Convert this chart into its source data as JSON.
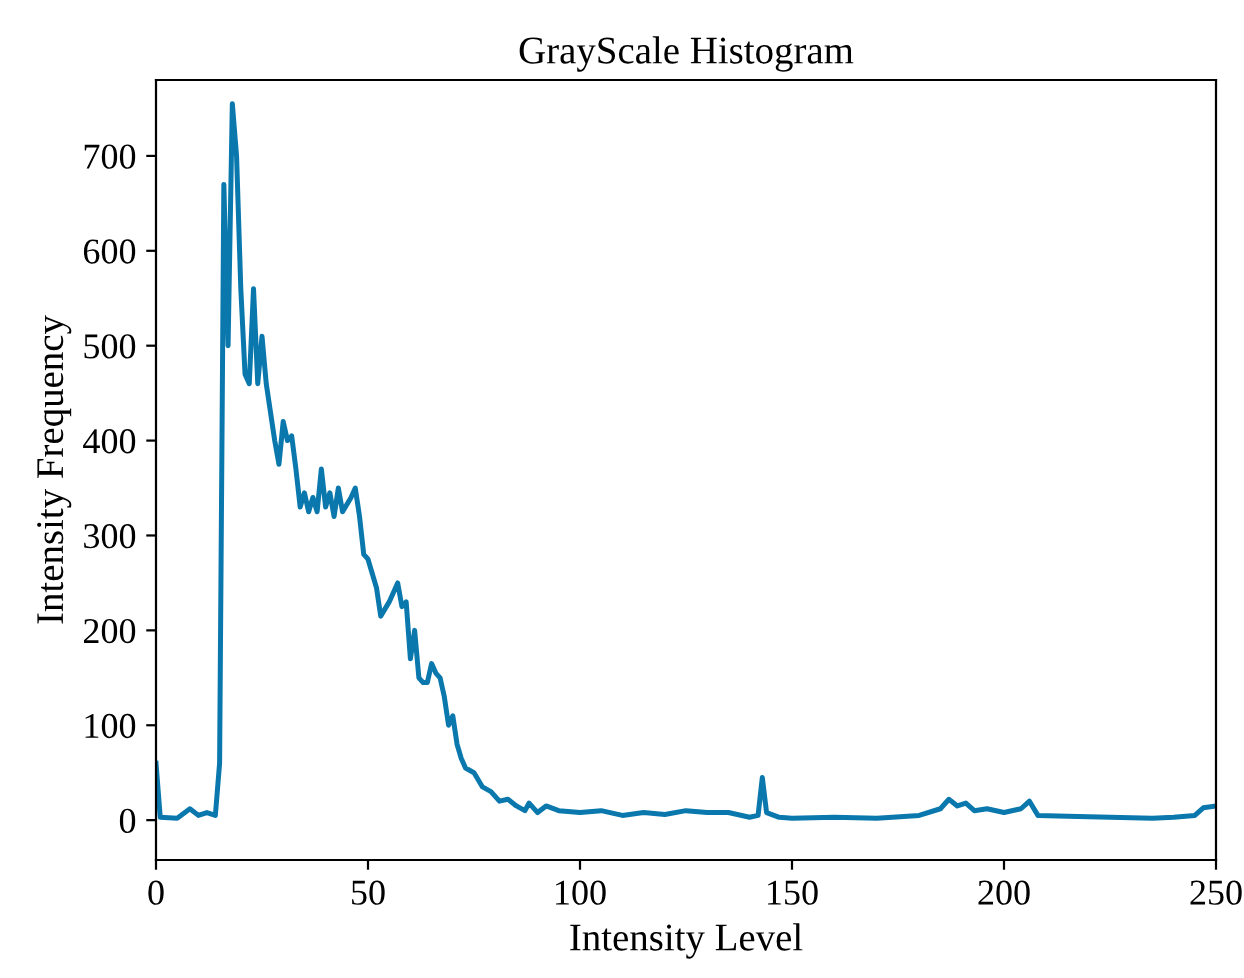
{
  "chart_data": {
    "type": "line",
    "title": "GrayScale Histogram",
    "xlabel": "Intensity Level",
    "ylabel": "Intensity Frequency",
    "xlim": [
      0,
      250
    ],
    "ylim": [
      -42,
      780
    ],
    "xticks": [
      0,
      50,
      100,
      150,
      200,
      250
    ],
    "yticks": [
      0,
      100,
      200,
      300,
      400,
      500,
      600,
      700
    ],
    "grid": false,
    "legend": false,
    "series": [
      {
        "color": "#0a78ad",
        "x": [
          0,
          1,
          5,
          8,
          10,
          12,
          14,
          15,
          16,
          17,
          18,
          19,
          20,
          21,
          22,
          23,
          24,
          25,
          26,
          28,
          29,
          30,
          31,
          32,
          33,
          34,
          35,
          36,
          37,
          38,
          39,
          40,
          41,
          42,
          43,
          44,
          46,
          47,
          48,
          49,
          50,
          52,
          53,
          55,
          57,
          58,
          59,
          60,
          61,
          62,
          63,
          64,
          65,
          66,
          67,
          68,
          69,
          70,
          71,
          72,
          73,
          75,
          77,
          79,
          81,
          83,
          85,
          87,
          88,
          90,
          92,
          95,
          100,
          105,
          110,
          115,
          120,
          125,
          130,
          135,
          140,
          142,
          143,
          144,
          147,
          150,
          160,
          170,
          180,
          185,
          187,
          189,
          191,
          193,
          196,
          200,
          204,
          206,
          208,
          215,
          225,
          235,
          240,
          245,
          247,
          250
        ],
        "values": [
          60,
          3,
          2,
          12,
          5,
          8,
          5,
          60,
          670,
          500,
          755,
          700,
          560,
          470,
          460,
          560,
          460,
          510,
          460,
          400,
          375,
          420,
          400,
          405,
          370,
          330,
          345,
          325,
          340,
          325,
          370,
          330,
          345,
          320,
          350,
          325,
          340,
          350,
          320,
          280,
          275,
          245,
          215,
          230,
          250,
          225,
          230,
          170,
          200,
          150,
          145,
          145,
          165,
          155,
          150,
          130,
          100,
          110,
          80,
          65,
          55,
          50,
          35,
          30,
          20,
          22,
          15,
          10,
          18,
          8,
          15,
          10,
          8,
          10,
          5,
          8,
          6,
          10,
          8,
          8,
          3,
          5,
          45,
          8,
          3,
          2,
          3,
          2,
          5,
          12,
          22,
          15,
          18,
          10,
          12,
          8,
          12,
          20,
          5,
          4,
          3,
          2,
          3,
          5,
          13,
          15
        ]
      }
    ]
  }
}
